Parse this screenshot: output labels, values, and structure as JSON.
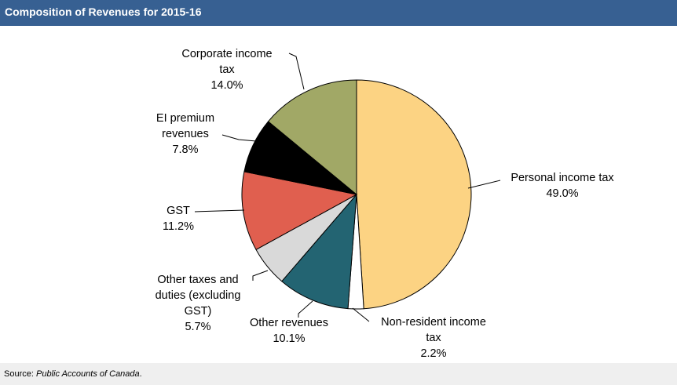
{
  "title": "Composition of Revenues for 2015-16",
  "footer": {
    "source_label": "Source:",
    "source_value": "Public Accounts of Canada",
    "source_end": "."
  },
  "chart_data": {
    "type": "pie",
    "title": "Composition of Revenues for 2015-16",
    "start": "12 o'clock",
    "direction": "clockwise",
    "slices": [
      {
        "label_lines": [
          "Personal income tax"
        ],
        "value_text": "49.0%",
        "value": 49.0,
        "color": "#fcd383"
      },
      {
        "label_lines": [
          "Non-resident income",
          "tax"
        ],
        "value_text": "2.2%",
        "value": 2.2,
        "color": "#ffffff"
      },
      {
        "label_lines": [
          "Other revenues"
        ],
        "value_text": "10.1%",
        "value": 10.1,
        "color": "#236472"
      },
      {
        "label_lines": [
          "Other taxes and",
          "duties (excluding",
          "GST)"
        ],
        "value_text": "5.7%",
        "value": 5.7,
        "color": "#d9d9d9"
      },
      {
        "label_lines": [
          "GST"
        ],
        "value_text": "11.2%",
        "value": 11.2,
        "color": "#e05f4f"
      },
      {
        "label_lines": [
          "EI premium",
          "revenues"
        ],
        "value_text": "7.8%",
        "value": 7.8,
        "color": "#000000"
      },
      {
        "label_lines": [
          "Corporate income",
          "tax"
        ],
        "value_text": "14.0%",
        "value": 14.0,
        "color": "#a1a866"
      }
    ]
  }
}
